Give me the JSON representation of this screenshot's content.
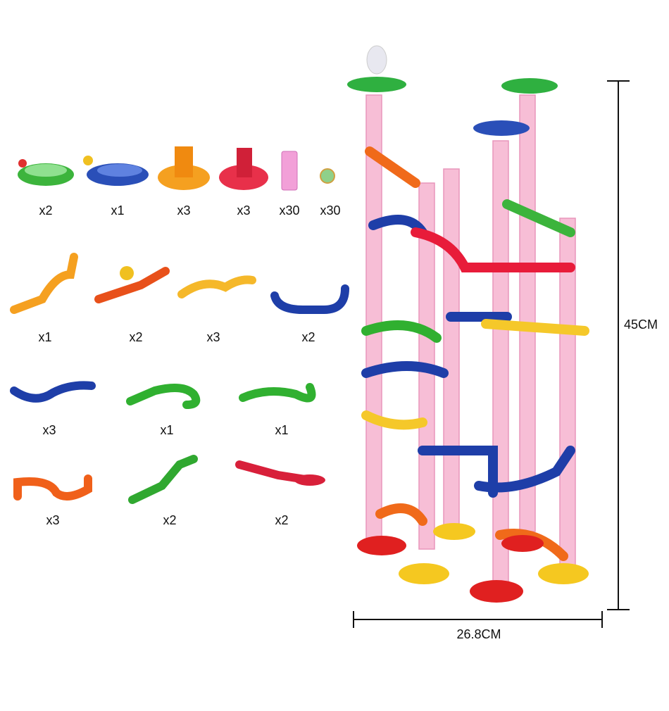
{
  "parts": {
    "rows": [
      [
        "x2",
        "x1",
        "x3",
        "x3",
        "x30",
        "x30"
      ],
      [
        "x1",
        "x2",
        "x3",
        "x2"
      ],
      [
        "x3",
        "x1",
        "x1"
      ],
      [
        "x3",
        "x2",
        "x2"
      ]
    ]
  },
  "dimensions": {
    "height": "45CM",
    "width": "26.8CM"
  }
}
